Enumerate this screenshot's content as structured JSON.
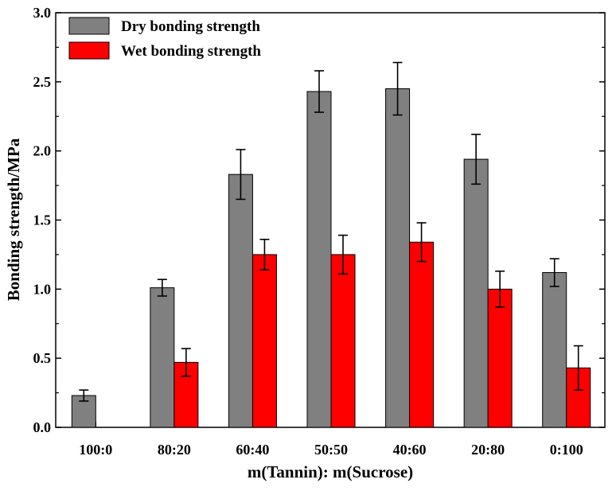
{
  "chart_data": {
    "type": "bar",
    "title": "",
    "xlabel": "m(Tannin): m(Sucrose)",
    "ylabel": "Bonding strength/MPa",
    "ylim": [
      0,
      3.0
    ],
    "yticks": [
      "0.0",
      "0.5",
      "1.0",
      "1.5",
      "2.0",
      "2.5",
      "3.0"
    ],
    "categories": [
      "100:0",
      "80:20",
      "60:40",
      "50:50",
      "40:60",
      "20:80",
      "0:100"
    ],
    "series": [
      {
        "name": "Dry bonding strength",
        "color": "#808080",
        "values": [
          0.23,
          1.01,
          1.83,
          2.43,
          2.45,
          1.94,
          1.12
        ],
        "errors": [
          0.04,
          0.06,
          0.18,
          0.15,
          0.19,
          0.18,
          0.1
        ]
      },
      {
        "name": "Wet bonding strength",
        "color": "#ff0000",
        "values": [
          null,
          0.47,
          1.25,
          1.25,
          1.34,
          1.0,
          0.43
        ],
        "errors": [
          null,
          0.1,
          0.11,
          0.14,
          0.14,
          0.13,
          0.16
        ]
      }
    ],
    "legend_position": "top-left",
    "grid": false
  }
}
